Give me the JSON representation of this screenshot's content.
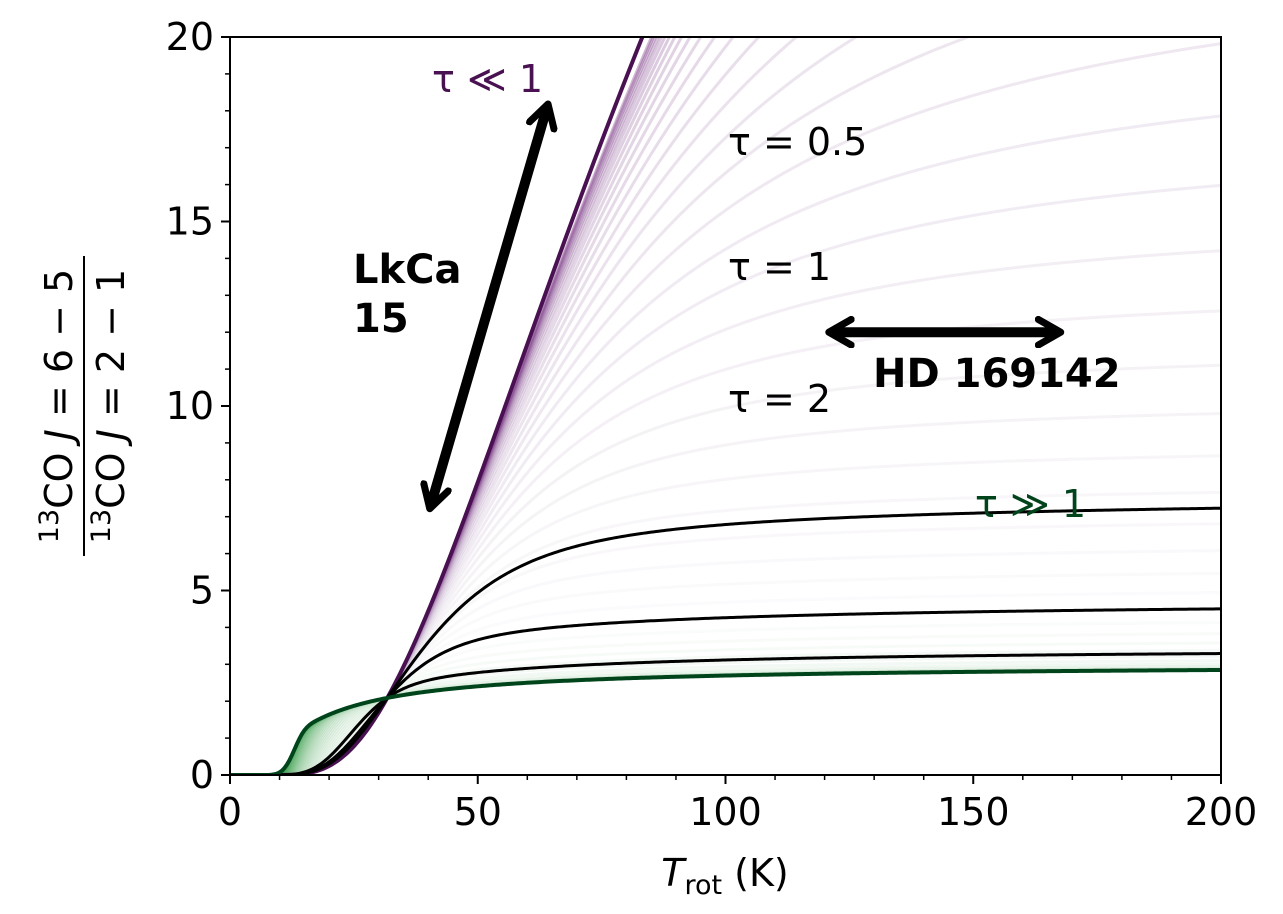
{
  "chart_data": {
    "type": "line",
    "xlabel": {
      "main": "T",
      "sub": "rot",
      "unit": " (K)"
    },
    "ylabel": {
      "numerator": {
        "sup": "13",
        "text": "CO ",
        "j": "J",
        "eq": " = 6 − 5"
      },
      "denominator": {
        "sup": "13",
        "text": "CO ",
        "j": "J",
        "eq": " = 2 − 1"
      }
    },
    "xlim": [
      0,
      200
    ],
    "ylim": [
      0,
      20
    ],
    "xticks": [
      0,
      50,
      100,
      150,
      200
    ],
    "xtick_labels": [
      "0",
      "50",
      "100",
      "150",
      "200"
    ],
    "yticks": [
      0,
      5,
      10,
      15,
      20
    ],
    "ytick_labels": [
      "0",
      "5",
      "10",
      "15",
      "20"
    ],
    "grid": false,
    "colors": {
      "thin": "#4a1152",
      "thick": "#00441b",
      "line": "#000000",
      "band_thin": "#dcc4e2",
      "band_thick": "#bfe3b9"
    },
    "series": [
      {
        "label": "τ ≪ 1",
        "tau": 0.001,
        "color": "#4a1152"
      },
      {
        "label": "τ = 0.5",
        "tau": 0.5,
        "color": "#000000"
      },
      {
        "label": "τ = 1",
        "tau": 1,
        "color": "#000000"
      },
      {
        "label": "τ = 2",
        "tau": 2,
        "color": "#000000"
      },
      {
        "label": "τ ≫ 1",
        "tau": 100,
        "color": "#00441b"
      }
    ],
    "annotations": [
      {
        "text_lines": [
          "LkCa",
          "15"
        ],
        "kind": "vertical-range",
        "x1": 40.5,
        "y1": 7.3,
        "x2": 64,
        "y2": 18.1
      },
      {
        "text_lines": [
          "HD 169142"
        ],
        "kind": "horizontal-range",
        "x1": 121.5,
        "y1": 12,
        "x2": 167,
        "y2": 12
      }
    ]
  }
}
